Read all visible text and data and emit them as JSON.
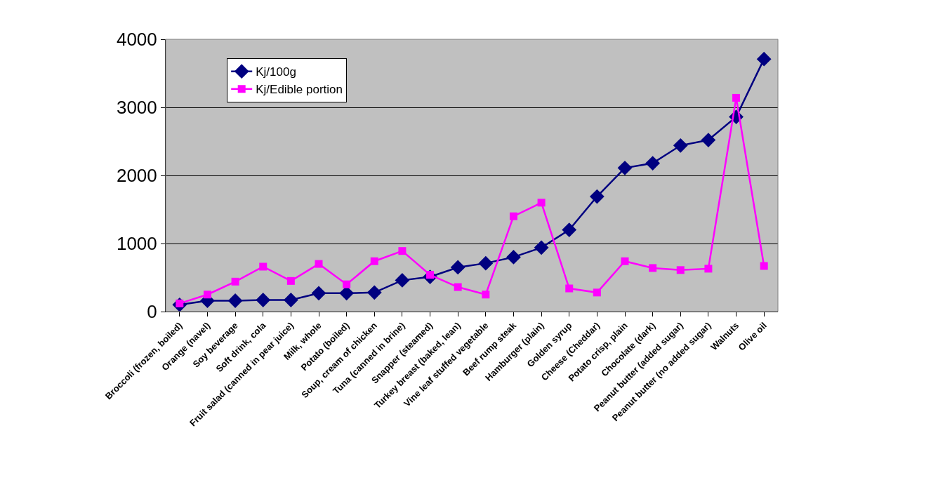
{
  "chart_data": {
    "type": "line",
    "categories": [
      "Broccoli (frozen, boiled)",
      "Orange (navel)",
      "Soy beverage",
      "Soft drink, cola",
      "Fruit salad (canned in pear juice)",
      "Milk, whole",
      "Potato (boiled)",
      "Soup, cream of chicken",
      "Tuna (canned in brine)",
      "Snapper (steamed)",
      "Turkey breast (baked, lean)",
      "Vine leaf stuffed vegetable",
      "Beef rump steak",
      "Hamburger (plain)",
      "Golden syrup",
      "Cheese (Cheddar)",
      "Potato crisp, plain",
      "Chocolate (dark)",
      "Peanut butter (added sugar)",
      "Peanut butter (no added sugar)",
      "Walnuts",
      "Olive oil"
    ],
    "series": [
      {
        "name": "Kj/100g",
        "color": "#000080",
        "marker": "diamond",
        "values": [
          100,
          160,
          160,
          170,
          170,
          270,
          270,
          280,
          460,
          510,
          650,
          710,
          800,
          940,
          1200,
          1690,
          2110,
          2180,
          2440,
          2520,
          2860,
          3710
        ]
      },
      {
        "name": "Kj/Edible portion",
        "color": "#ff00ff",
        "marker": "square",
        "values": [
          120,
          250,
          440,
          660,
          450,
          700,
          400,
          740,
          890,
          540,
          360,
          250,
          1400,
          1600,
          340,
          280,
          740,
          640,
          610,
          630,
          3140,
          670
        ]
      }
    ],
    "ylim": [
      0,
      4000
    ],
    "yticks": [
      0,
      1000,
      2000,
      3000,
      4000
    ],
    "grid": "y",
    "legend": "top left"
  }
}
